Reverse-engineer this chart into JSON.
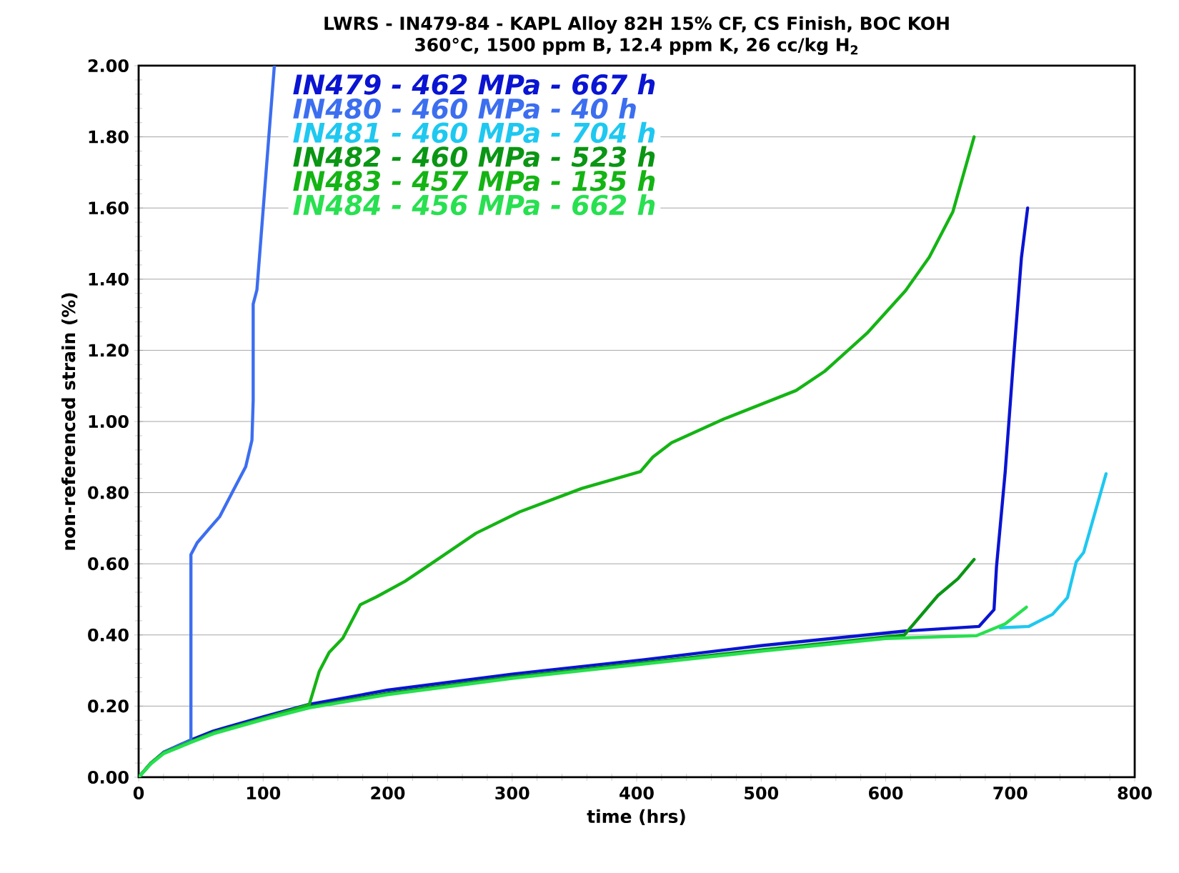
{
  "chart_data": {
    "type": "line",
    "title": "LWRS - IN479-84 - KAPL Alloy 82H 15% CF, CS Finish, BOC KOH",
    "subtitle": "360°C, 1500 ppm B, 12.4 ppm K, 26 cc/kg H$_{2}$",
    "xlabel": "time (hrs)",
    "ylabel": "non-referenced strain (%)",
    "xlim": [
      0,
      800
    ],
    "ylim": [
      0,
      2
    ],
    "xticks": [
      0,
      100,
      200,
      300,
      400,
      500,
      600,
      700,
      800
    ],
    "yticks": [
      {
        "value": 0,
        "label": "0.00"
      },
      {
        "value": 0.2,
        "label": "0.20"
      },
      {
        "value": 0.4,
        "label": "0.40"
      },
      {
        "value": 0.6,
        "label": "0.60"
      },
      {
        "value": 0.8,
        "label": "0.80"
      },
      {
        "value": 1.0,
        "label": "1.00"
      },
      {
        "value": 1.2,
        "label": "1.20"
      },
      {
        "value": 1.4,
        "label": "1.40"
      },
      {
        "value": 1.6,
        "label": "1.60"
      },
      {
        "value": 1.8,
        "label": "1.80"
      },
      {
        "value": 2.0,
        "label": "2.00"
      }
    ],
    "grid": "y",
    "legend": "top left",
    "marker": "none",
    "line_style": "solid",
    "series": [
      {
        "name": "IN479 - 462 MPa - 667 h",
        "color": "#0a14d2",
        "x": [
          0,
          10,
          20,
          42,
          60,
          100,
          137,
          200,
          300,
          405,
          500,
          616,
          675,
          687,
          689,
          696,
          703,
          709,
          714
        ],
        "values": [
          0,
          0.04,
          0.07,
          0.105,
          0.13,
          0.17,
          0.205,
          0.245,
          0.29,
          0.33,
          0.37,
          0.411,
          0.424,
          0.471,
          0.592,
          0.859,
          1.19,
          1.46,
          1.6
        ]
      },
      {
        "name": "IN480 - 460 MPa - 40 h",
        "color": "#3c6ef0",
        "x": [
          0,
          10,
          20,
          42,
          42,
          47,
          57,
          65,
          76,
          86,
          91,
          92,
          92,
          95,
          109
        ],
        "values": [
          0,
          0.04,
          0.07,
          0.104,
          0.626,
          0.659,
          0.7,
          0.732,
          0.806,
          0.873,
          0.947,
          1.06,
          1.33,
          1.37,
          2.0
        ]
      },
      {
        "name": "IN481 - 460 MPa - 704 h",
        "color": "#1ec8f0",
        "x": [
          692,
          715,
          734,
          746,
          753,
          759,
          777
        ],
        "values": [
          0.42,
          0.424,
          0.458,
          0.505,
          0.605,
          0.632,
          0.853
        ]
      },
      {
        "name": "IN482 - 460 MPa - 523 h",
        "color": "#0a9614",
        "x": [
          0,
          10,
          20,
          42,
          60,
          100,
          137,
          200,
          300,
          400,
          500,
          615,
          642,
          658,
          671
        ],
        "values": [
          0,
          0.04,
          0.068,
          0.1,
          0.125,
          0.165,
          0.198,
          0.236,
          0.282,
          0.32,
          0.358,
          0.4,
          0.511,
          0.558,
          0.612
        ]
      },
      {
        "name": "IN483 - 457 MPa - 135 h",
        "color": "#14b414",
        "x": [
          0,
          10,
          20,
          42,
          60,
          100,
          137,
          145,
          153,
          164,
          178,
          191,
          214,
          237,
          271,
          306,
          356,
          403,
          413,
          428,
          470,
          528,
          551,
          585,
          616,
          635,
          654,
          671
        ],
        "values": [
          0,
          0.04,
          0.068,
          0.1,
          0.125,
          0.165,
          0.204,
          0.297,
          0.351,
          0.391,
          0.485,
          0.507,
          0.551,
          0.605,
          0.686,
          0.746,
          0.812,
          0.859,
          0.9,
          0.94,
          1.007,
          1.087,
          1.141,
          1.248,
          1.368,
          1.462,
          1.59,
          1.8
        ]
      },
      {
        "name": "IN484 - 456 MPa - 662 h",
        "color": "#28e050",
        "x": [
          0,
          10,
          20,
          42,
          60,
          100,
          137,
          200,
          300,
          400,
          500,
          600,
          673,
          696,
          713
        ],
        "values": [
          0,
          0.038,
          0.066,
          0.098,
          0.122,
          0.162,
          0.195,
          0.232,
          0.278,
          0.316,
          0.354,
          0.39,
          0.398,
          0.431,
          0.478
        ]
      }
    ]
  }
}
